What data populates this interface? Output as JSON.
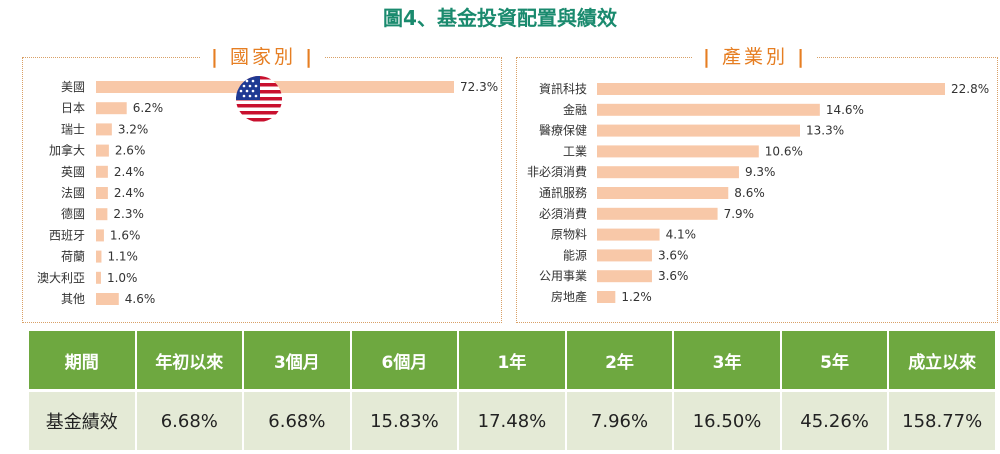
{
  "title": "圖4、基金投資配置與績效",
  "country_panel": {
    "heading": "國家別"
  },
  "industry_panel": {
    "heading": "產業別"
  },
  "colors": {
    "bar": "#f8c8a8",
    "title": "#1a8a6e",
    "accent": "#e67e22",
    "table_header": "#6ea840",
    "table_body": "#e4ead6"
  },
  "icons": {
    "flag": "us-flag-icon"
  },
  "chart_data": [
    {
      "type": "bar",
      "orientation": "horizontal",
      "title": "國家別",
      "categories": [
        "美國",
        "日本",
        "瑞士",
        "加拿大",
        "英國",
        "法國",
        "德國",
        "西班牙",
        "荷蘭",
        "澳大利亞",
        "其他"
      ],
      "values": [
        72.3,
        6.2,
        3.2,
        2.6,
        2.4,
        2.4,
        2.3,
        1.6,
        1.1,
        1.0,
        4.6
      ],
      "value_labels": [
        "72.3%",
        "6.2%",
        "3.2%",
        "2.6%",
        "2.4%",
        "2.4%",
        "2.3%",
        "1.6%",
        "1.1%",
        "1.0%",
        "4.6%"
      ],
      "unit": "%"
    },
    {
      "type": "bar",
      "orientation": "horizontal",
      "title": "產業別",
      "categories": [
        "資訊科技",
        "金融",
        "醫療保健",
        "工業",
        "非必須消費",
        "通訊服務",
        "必須消費",
        "原物料",
        "能源",
        "公用事業",
        "房地產"
      ],
      "values": [
        22.8,
        14.6,
        13.3,
        10.6,
        9.3,
        8.6,
        7.9,
        4.1,
        3.6,
        3.6,
        1.2
      ],
      "value_labels": [
        "22.8%",
        "14.6%",
        "13.3%",
        "10.6%",
        "9.3%",
        "8.6%",
        "7.9%",
        "4.1%",
        "3.6%",
        "3.6%",
        "1.2%"
      ],
      "unit": "%"
    }
  ],
  "performance_table": {
    "headers": [
      "期間",
      "年初以來",
      "3個月",
      "6個月",
      "1年",
      "2年",
      "3年",
      "5年",
      "成立以來"
    ],
    "row": [
      "基金績效",
      "6.68%",
      "6.68%",
      "15.83%",
      "17.48%",
      "7.96%",
      "16.50%",
      "45.26%",
      "158.77%"
    ]
  }
}
